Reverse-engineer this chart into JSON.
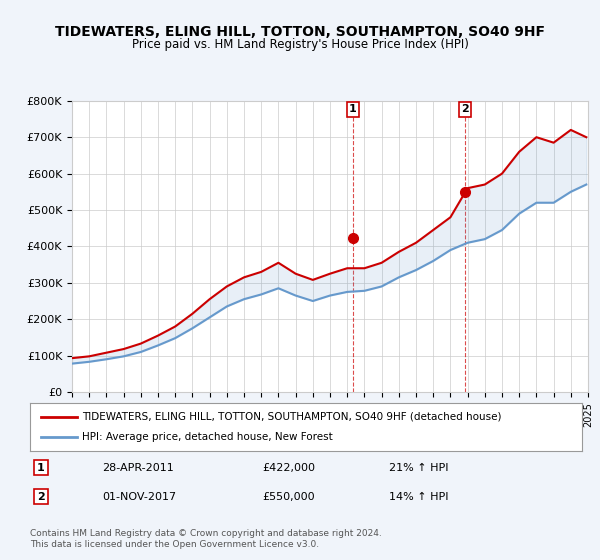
{
  "title": "TIDEWATERS, ELING HILL, TOTTON, SOUTHAMPTON, SO40 9HF",
  "subtitle": "Price paid vs. HM Land Registry's House Price Index (HPI)",
  "legend_line1": "TIDEWATERS, ELING HILL, TOTTON, SOUTHAMPTON, SO40 9HF (detached house)",
  "legend_line2": "HPI: Average price, detached house, New Forest",
  "annotation1_label": "1",
  "annotation1_date": "28-APR-2011",
  "annotation1_price": "£422,000",
  "annotation1_hpi": "21% ↑ HPI",
  "annotation2_label": "2",
  "annotation2_date": "01-NOV-2017",
  "annotation2_price": "£550,000",
  "annotation2_hpi": "14% ↑ HPI",
  "footer": "Contains HM Land Registry data © Crown copyright and database right 2024.\nThis data is licensed under the Open Government Licence v3.0.",
  "ylim": [
    0,
    800000
  ],
  "yticks": [
    0,
    100000,
    200000,
    300000,
    400000,
    500000,
    600000,
    700000,
    800000
  ],
  "ytick_labels": [
    "£0",
    "£100K",
    "£200K",
    "£300K",
    "£400K",
    "£500K",
    "£600K",
    "£700K",
    "£800K"
  ],
  "background_color": "#f0f4fa",
  "plot_bg_color": "#ffffff",
  "red_line_color": "#cc0000",
  "blue_line_color": "#6699cc",
  "vline_color": "#cc0000",
  "marker1_x": 2011.33,
  "marker1_y": 422000,
  "marker2_x": 2017.83,
  "marker2_y": 550000,
  "xmin": 1995,
  "xmax": 2025,
  "hpi_years": [
    1995,
    1996,
    1997,
    1998,
    1999,
    2000,
    2001,
    2002,
    2003,
    2004,
    2005,
    2006,
    2007,
    2008,
    2009,
    2010,
    2011,
    2012,
    2013,
    2014,
    2015,
    2016,
    2017,
    2018,
    2019,
    2020,
    2021,
    2022,
    2023,
    2024,
    2024.9
  ],
  "hpi_values": [
    78000,
    83000,
    90000,
    98000,
    110000,
    128000,
    148000,
    175000,
    205000,
    235000,
    255000,
    268000,
    285000,
    265000,
    250000,
    265000,
    275000,
    278000,
    290000,
    315000,
    335000,
    360000,
    390000,
    410000,
    420000,
    445000,
    490000,
    520000,
    520000,
    550000,
    570000
  ],
  "property_years": [
    1995,
    1996,
    1997,
    1998,
    1999,
    2000,
    2001,
    2002,
    2003,
    2004,
    2005,
    2006,
    2007,
    2008,
    2009,
    2010,
    2011,
    2012,
    2013,
    2014,
    2015,
    2016,
    2017,
    2018,
    2019,
    2020,
    2021,
    2022,
    2023,
    2024,
    2024.9
  ],
  "property_values": [
    93000,
    98000,
    108000,
    118000,
    133000,
    155000,
    180000,
    215000,
    255000,
    290000,
    315000,
    330000,
    355000,
    325000,
    308000,
    325000,
    340000,
    340000,
    355000,
    385000,
    410000,
    445000,
    480000,
    560000,
    570000,
    600000,
    660000,
    700000,
    685000,
    720000,
    700000
  ]
}
